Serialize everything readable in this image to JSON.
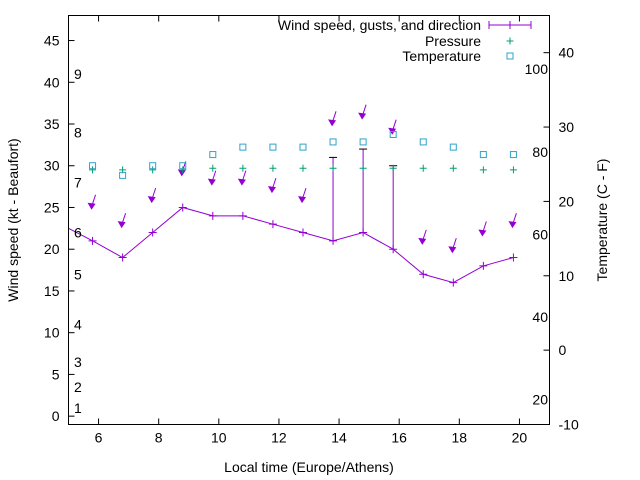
{
  "chart_data": {
    "type": "line",
    "xlabel": "Local time (Europe/Athens)",
    "ylabel_left": "Wind speed (kt - Beaufort)",
    "ylabel_right": "Temperature (C - F)",
    "xlim": [
      5,
      21
    ],
    "ylim_left": [
      -1,
      48
    ],
    "ylim_right": [
      -10,
      45
    ],
    "x_ticks": [
      "6",
      "8",
      "10",
      "12",
      "14",
      "16",
      "18",
      "20"
    ],
    "y_ticks_left": [
      "0",
      "5",
      "10",
      "15",
      "20",
      "25",
      "30",
      "35",
      "40",
      "45"
    ],
    "y_ticks_right": [
      "-10",
      "0",
      "10",
      "20",
      "30",
      "40"
    ],
    "beaufort_labels": [
      "1",
      "2",
      "3",
      "4",
      "5",
      "6",
      "7",
      "8",
      "9"
    ],
    "fahrenheit_labels": [
      "20",
      "40",
      "60",
      "80",
      "100"
    ],
    "legend": {
      "placement": "top-right",
      "entries": [
        "Wind speed, gusts, and direction",
        "Pressure",
        "Temperature"
      ]
    },
    "x": [
      5,
      5.8,
      6.8,
      7.8,
      8.8,
      9.8,
      10.8,
      11.8,
      12.8,
      13.8,
      14.8,
      15.8,
      16.8,
      17.8,
      18.8,
      19.8
    ],
    "series": [
      {
        "name": "Wind speed, gusts, and direction",
        "values": [
          22.5,
          21,
          19,
          22,
          25,
          24,
          24,
          23,
          22,
          21,
          22,
          20,
          17,
          16,
          18,
          19
        ],
        "gusts": [
          null,
          null,
          null,
          null,
          null,
          null,
          null,
          null,
          null,
          31,
          32,
          30,
          null,
          null,
          null,
          null
        ],
        "color": "#9400d3"
      },
      {
        "name": "Pressure",
        "values": [
          null,
          29.5,
          29.5,
          29.5,
          29.5,
          29.7,
          29.7,
          29.7,
          29.7,
          29.7,
          29.7,
          29.7,
          29.7,
          29.7,
          29.5,
          29.5
        ],
        "color": "#009e73"
      },
      {
        "name": "Temperature",
        "values": [
          null,
          24.8,
          23.5,
          24.8,
          24.8,
          26.3,
          27.3,
          27.3,
          27.3,
          28,
          28,
          29,
          28,
          27.3,
          26.3,
          26.3
        ],
        "color": "#2fa4c8"
      }
    ],
    "direction_arrows": {
      "color": "#9400d3",
      "x": [
        5.8,
        6.8,
        7.8,
        8.8,
        9.8,
        10.8,
        11.8,
        12.8,
        13.8,
        14.8,
        15.8,
        16.8,
        17.8,
        18.8,
        19.8
      ],
      "y": [
        25.2,
        23,
        26,
        29.2,
        28.1,
        28.1,
        27.2,
        26,
        35.2,
        36,
        34.2,
        21,
        20,
        22,
        23
      ]
    }
  }
}
